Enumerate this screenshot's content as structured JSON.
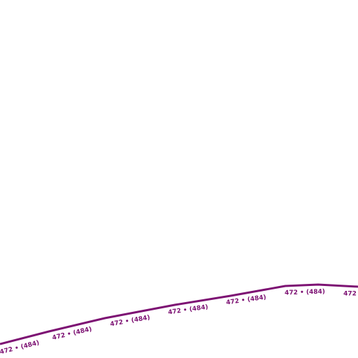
{
  "road": {
    "label": "472 • (484)"
  }
}
